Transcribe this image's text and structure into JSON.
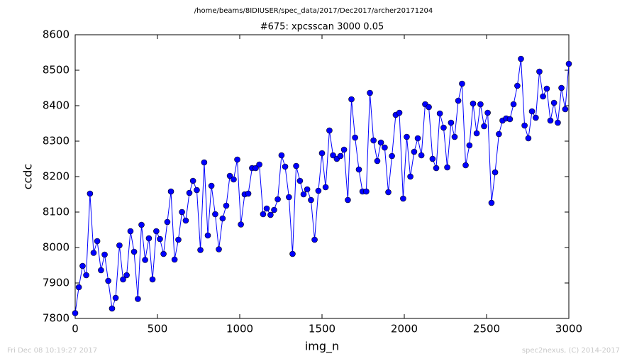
{
  "chart_data": {
    "type": "line",
    "suptitle": "/home/beams/8IDIUSER/spec_data/2017/Dec2017/archer20171204",
    "title": "#675: xpcsscan 3000 0.05",
    "xlabel": "img_n",
    "ylabel": "ccdc",
    "x": [
      0,
      22,
      45,
      67,
      90,
      112,
      134,
      157,
      179,
      201,
      224,
      246,
      269,
      291,
      313,
      336,
      358,
      381,
      403,
      425,
      448,
      470,
      493,
      515,
      537,
      560,
      582,
      604,
      627,
      649,
      672,
      694,
      716,
      739,
      761,
      784,
      806,
      828,
      851,
      873,
      896,
      918,
      940,
      963,
      985,
      1007,
      1030,
      1052,
      1075,
      1097,
      1119,
      1142,
      1164,
      1187,
      1209,
      1231,
      1254,
      1276,
      1299,
      1321,
      1343,
      1366,
      1388,
      1410,
      1433,
      1455,
      1478,
      1500,
      1522,
      1545,
      1567,
      1590,
      1612,
      1634,
      1657,
      1679,
      1701,
      1724,
      1746,
      1769,
      1791,
      1813,
      1836,
      1858,
      1881,
      1903,
      1925,
      1948,
      1970,
      1993,
      2015,
      2037,
      2060,
      2082,
      2104,
      2127,
      2149,
      2172,
      2194,
      2216,
      2239,
      2261,
      2284,
      2306,
      2328,
      2351,
      2373,
      2396,
      2418,
      2440,
      2463,
      2485,
      2507,
      2530,
      2552,
      2575,
      2597,
      2619,
      2642,
      2664,
      2687,
      2709,
      2731,
      2754,
      2776,
      2799,
      2821,
      2843,
      2866,
      2888,
      2910,
      2933,
      2955,
      2978,
      3000
    ],
    "series": [
      {
        "color": "#0000ff",
        "values": [
          7815,
          7888,
          7948,
          7922,
          8152,
          7985,
          8018,
          7936,
          7980,
          7906,
          7828,
          7858,
          8006,
          7910,
          7922,
          8046,
          7988,
          7855,
          8064,
          7965,
          8026,
          7910,
          8046,
          8024,
          7982,
          8072,
          8158,
          7966,
          8022,
          8100,
          8076,
          8154,
          8188,
          8162,
          7993,
          8240,
          8034,
          8174,
          8094,
          7995,
          8082,
          8118,
          8202,
          8192,
          8248,
          8065,
          8150,
          8152,
          8224,
          8224,
          8234,
          8094,
          8110,
          8092,
          8106,
          8136,
          8260,
          8228,
          8142,
          7982,
          8230,
          8188,
          8150,
          8164,
          8134,
          8022,
          8160,
          8266,
          8170,
          8330,
          8260,
          8250,
          8258,
          8276,
          8134,
          8418,
          8310,
          8220,
          8158,
          8158,
          8436,
          8302,
          8244,
          8296,
          8282,
          8156,
          8258,
          8374,
          8380,
          8138,
          8312,
          8200,
          8270,
          8308,
          8260,
          8404,
          8396,
          8250,
          8224,
          8378,
          8338,
          8226,
          8352,
          8312,
          8414,
          8462,
          8232,
          8288,
          8406,
          8322,
          8404,
          8342,
          8380,
          8126,
          8212,
          8320,
          8358,
          8364,
          8362,
          8404,
          8456,
          8532,
          8344,
          8308,
          8384,
          8366,
          8496,
          8426,
          8448,
          8358,
          8408,
          8352,
          8450,
          8390,
          8518
        ]
      }
    ],
    "xlim": [
      0,
      3000
    ],
    "xticks": [
      0,
      500,
      1000,
      1500,
      2000,
      2500,
      3000
    ],
    "ylim": [
      7800,
      8600
    ],
    "yticks": [
      7800,
      7900,
      8000,
      8100,
      8200,
      8300,
      8400,
      8500,
      8600
    ],
    "grid": false
  },
  "footer": {
    "left": "Fri Dec 08 10:19:27 2017",
    "right": "spec2nexus, (C) 2014-2017"
  }
}
